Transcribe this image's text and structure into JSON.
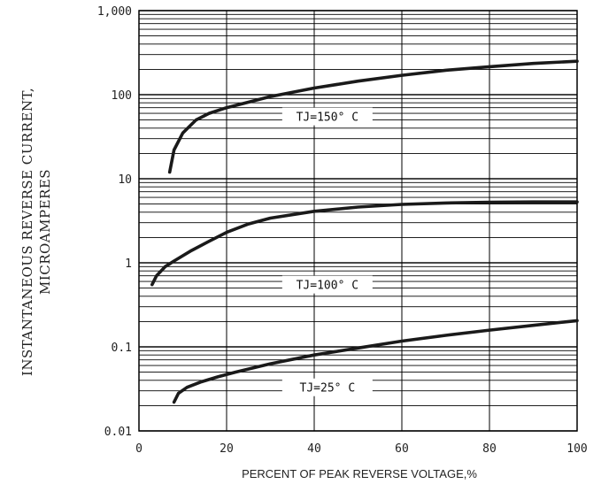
{
  "chart_data": {
    "type": "line",
    "title": "",
    "xlabel": "PERCENT OF PEAK REVERSE VOLTAGE,%",
    "ylabel_lines": [
      "INSTANTANEOUS REVERSE CURRENT,",
      "MICROAMPERES"
    ],
    "x_scale": "linear",
    "y_scale": "log",
    "xlim": [
      0,
      100
    ],
    "ylim": [
      0.01,
      1000
    ],
    "x_ticks": [
      0,
      20,
      40,
      60,
      80,
      100
    ],
    "x_tick_labels": [
      "0",
      "20",
      "40",
      "60",
      "80",
      "100"
    ],
    "y_ticks": [
      0.01,
      0.1,
      1,
      10,
      100,
      1000
    ],
    "y_tick_labels": [
      "0.01",
      "0.1",
      "1",
      "10",
      "100",
      "1,000"
    ],
    "grid": true,
    "series": [
      {
        "name": "TJ=150° C",
        "x": [
          7,
          8,
          10,
          13,
          16,
          20,
          30,
          40,
          50,
          60,
          70,
          80,
          90,
          100
        ],
        "y": [
          12,
          22,
          35,
          50,
          60,
          70,
          95,
          120,
          145,
          170,
          195,
          215,
          235,
          250
        ]
      },
      {
        "name": "TJ=100° C",
        "x": [
          3,
          4,
          6,
          8,
          12,
          16,
          20,
          25,
          30,
          40,
          50,
          60,
          70,
          80,
          90,
          100
        ],
        "y": [
          0.55,
          0.7,
          0.9,
          1.05,
          1.4,
          1.8,
          2.3,
          2.9,
          3.4,
          4.1,
          4.6,
          4.95,
          5.15,
          5.25,
          5.3,
          5.3
        ]
      },
      {
        "name": "TJ=25° C",
        "x": [
          8,
          9,
          11,
          14,
          18,
          22,
          30,
          40,
          50,
          60,
          70,
          80,
          90,
          100
        ],
        "y": [
          0.022,
          0.028,
          0.033,
          0.038,
          0.044,
          0.05,
          0.063,
          0.08,
          0.097,
          0.117,
          0.137,
          0.158,
          0.18,
          0.205
        ]
      }
    ]
  }
}
